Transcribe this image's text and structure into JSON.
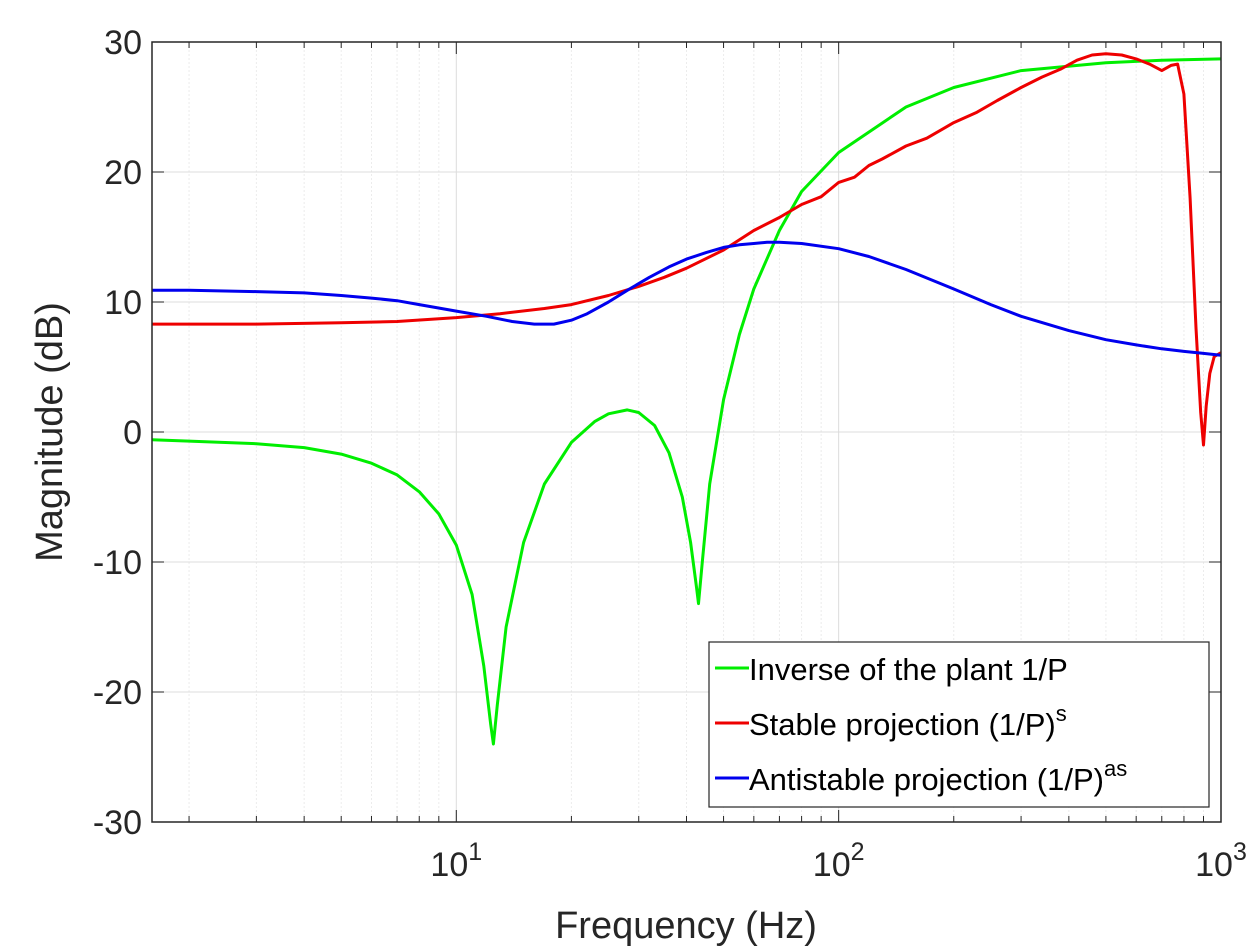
{
  "chart_data": {
    "type": "line",
    "xlabel": "Frequency (Hz)",
    "ylabel": "Magnitude (dB)",
    "xscale": "log",
    "xlim": [
      1.6,
      1000
    ],
    "ylim": [
      -30,
      30
    ],
    "grid": true,
    "legend_position": "bottom-right",
    "x_ticks": [
      {
        "value": 10,
        "base": "10",
        "exp": "1"
      },
      {
        "value": 100,
        "base": "10",
        "exp": "2"
      },
      {
        "value": 1000,
        "base": "10",
        "exp": "3"
      }
    ],
    "y_ticks": [
      {
        "value": 30,
        "label": "30"
      },
      {
        "value": 20,
        "label": "20"
      },
      {
        "value": 10,
        "label": "10"
      },
      {
        "value": 0,
        "label": "0"
      },
      {
        "value": -10,
        "label": "-10"
      },
      {
        "value": -20,
        "label": "-20"
      },
      {
        "value": -30,
        "label": "-30"
      }
    ],
    "series": [
      {
        "name": "Inverse of the plant 1/P",
        "legend_main": "Inverse of the plant 1/P",
        "legend_sup": "",
        "color": "#00ee00",
        "points": [
          [
            1.6,
            -0.6
          ],
          [
            2,
            -0.7
          ],
          [
            3,
            -0.9
          ],
          [
            4,
            -1.2
          ],
          [
            5,
            -1.7
          ],
          [
            6,
            -2.4
          ],
          [
            7,
            -3.3
          ],
          [
            8,
            -4.6
          ],
          [
            9,
            -6.3
          ],
          [
            10,
            -8.7
          ],
          [
            11,
            -12.5
          ],
          [
            11.8,
            -18
          ],
          [
            12.3,
            -22.5
          ],
          [
            12.5,
            -24
          ],
          [
            12.8,
            -21
          ],
          [
            13.5,
            -15
          ],
          [
            15,
            -8.5
          ],
          [
            17,
            -4
          ],
          [
            20,
            -0.8
          ],
          [
            23,
            0.8
          ],
          [
            25,
            1.4
          ],
          [
            28,
            1.7
          ],
          [
            30,
            1.5
          ],
          [
            33,
            0.5
          ],
          [
            36,
            -1.6
          ],
          [
            39,
            -5
          ],
          [
            41,
            -8.5
          ],
          [
            42.5,
            -12
          ],
          [
            43,
            -13.2
          ],
          [
            44,
            -10
          ],
          [
            46,
            -4
          ],
          [
            50,
            2.5
          ],
          [
            55,
            7.5
          ],
          [
            60,
            11
          ],
          [
            70,
            15.5
          ],
          [
            80,
            18.5
          ],
          [
            100,
            21.5
          ],
          [
            150,
            25
          ],
          [
            200,
            26.5
          ],
          [
            300,
            27.8
          ],
          [
            500,
            28.4
          ],
          [
            700,
            28.6
          ],
          [
            1000,
            28.7
          ]
        ]
      },
      {
        "name": "Stable projection (1/P)s",
        "legend_main": "Stable projection (1/P)",
        "legend_sup": "s",
        "color": "#ee0000",
        "points": [
          [
            1.6,
            8.3
          ],
          [
            3,
            8.3
          ],
          [
            5,
            8.4
          ],
          [
            7,
            8.5
          ],
          [
            10,
            8.8
          ],
          [
            13,
            9.1
          ],
          [
            17,
            9.5
          ],
          [
            20,
            9.8
          ],
          [
            25,
            10.5
          ],
          [
            30,
            11.2
          ],
          [
            35,
            11.9
          ],
          [
            40,
            12.6
          ],
          [
            50,
            14
          ],
          [
            60,
            15.5
          ],
          [
            70,
            16.5
          ],
          [
            80,
            17.5
          ],
          [
            90,
            18.1
          ],
          [
            100,
            19.2
          ],
          [
            110,
            19.6
          ],
          [
            120,
            20.5
          ],
          [
            130,
            21
          ],
          [
            150,
            22
          ],
          [
            170,
            22.6
          ],
          [
            200,
            23.8
          ],
          [
            230,
            24.6
          ],
          [
            260,
            25.5
          ],
          [
            300,
            26.5
          ],
          [
            340,
            27.3
          ],
          [
            380,
            27.9
          ],
          [
            420,
            28.6
          ],
          [
            460,
            29
          ],
          [
            500,
            29.1
          ],
          [
            550,
            29
          ],
          [
            600,
            28.7
          ],
          [
            650,
            28.3
          ],
          [
            700,
            27.8
          ],
          [
            740,
            28.2
          ],
          [
            770,
            28.3
          ],
          [
            800,
            26
          ],
          [
            830,
            18
          ],
          [
            860,
            8
          ],
          [
            885,
            1.5
          ],
          [
            900,
            -1
          ],
          [
            915,
            2
          ],
          [
            935,
            4.5
          ],
          [
            960,
            5.8
          ],
          [
            1000,
            6.1
          ]
        ]
      },
      {
        "name": "Antistable projection (1/P)as",
        "legend_main": "Antistable projection (1/P)",
        "legend_sup": "as",
        "color": "#0000ee",
        "points": [
          [
            1.6,
            10.9
          ],
          [
            2,
            10.9
          ],
          [
            3,
            10.8
          ],
          [
            4,
            10.7
          ],
          [
            5,
            10.5
          ],
          [
            6,
            10.3
          ],
          [
            7,
            10.1
          ],
          [
            8,
            9.8
          ],
          [
            10,
            9.3
          ],
          [
            12,
            8.9
          ],
          [
            14,
            8.5
          ],
          [
            16,
            8.3
          ],
          [
            18,
            8.3
          ],
          [
            20,
            8.6
          ],
          [
            22,
            9.1
          ],
          [
            25,
            10
          ],
          [
            28,
            10.9
          ],
          [
            32,
            11.9
          ],
          [
            36,
            12.7
          ],
          [
            40,
            13.3
          ],
          [
            45,
            13.8
          ],
          [
            50,
            14.2
          ],
          [
            55,
            14.4
          ],
          [
            60,
            14.5
          ],
          [
            65,
            14.6
          ],
          [
            70,
            14.6
          ],
          [
            80,
            14.5
          ],
          [
            100,
            14.1
          ],
          [
            120,
            13.5
          ],
          [
            150,
            12.5
          ],
          [
            200,
            11
          ],
          [
            250,
            9.8
          ],
          [
            300,
            8.9
          ],
          [
            400,
            7.8
          ],
          [
            500,
            7.1
          ],
          [
            600,
            6.7
          ],
          [
            700,
            6.4
          ],
          [
            800,
            6.2
          ],
          [
            900,
            6.05
          ],
          [
            1000,
            5.9
          ]
        ]
      }
    ]
  }
}
